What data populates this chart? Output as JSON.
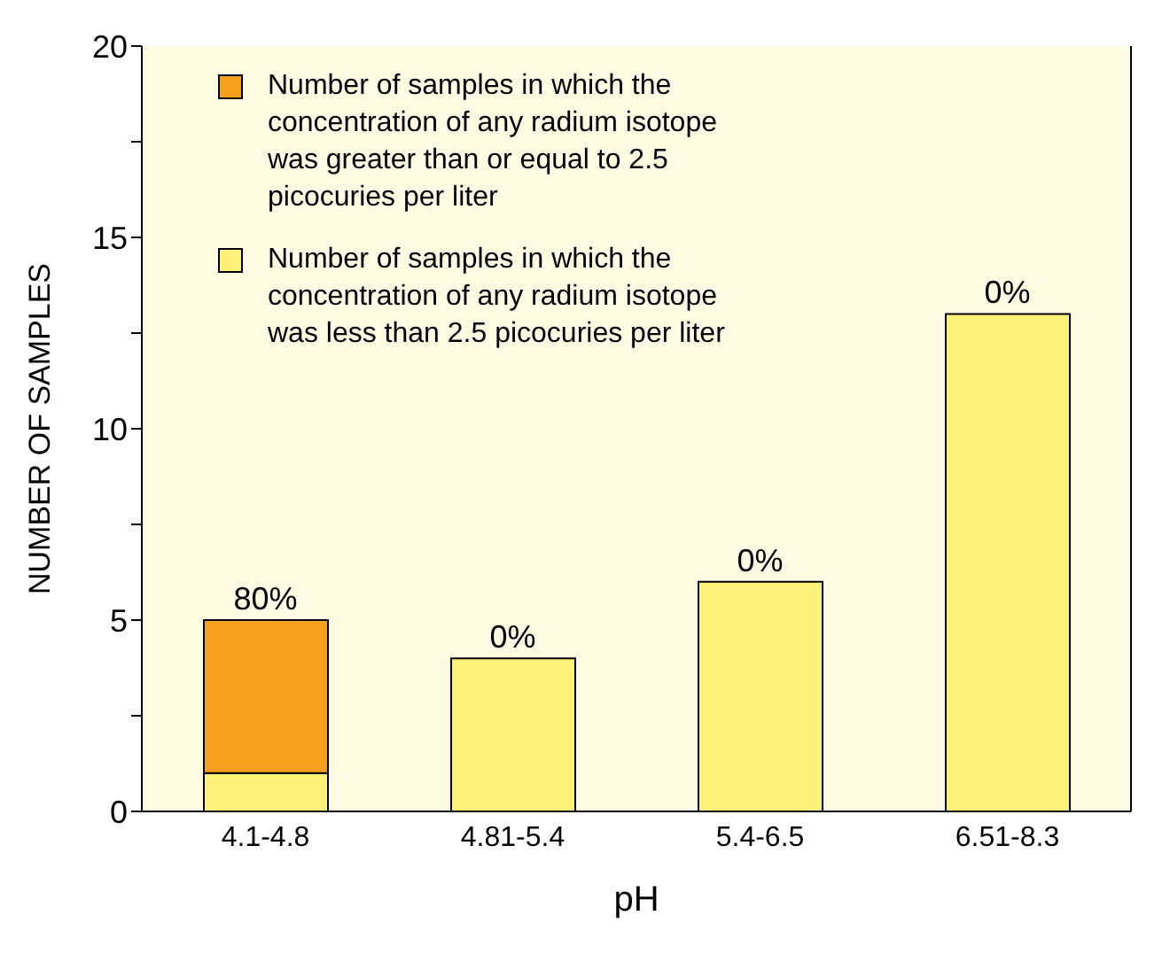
{
  "chart_data": {
    "type": "bar",
    "stacked": true,
    "xlabel": "pH",
    "ylabel": "NUMBER OF SAMPLES",
    "categories": [
      "4.1-4.8",
      "4.81-5.4",
      "5.4-6.5",
      "6.51-8.3"
    ],
    "series": [
      {
        "name": "Number of samples in which the concentration of any radium isotope was less than  2.5 picocuries per liter",
        "color": "#fff27a",
        "values": [
          1,
          4,
          6,
          13
        ]
      },
      {
        "name": "Number of samples in which the concentration of any radium isotope was greater than or equal to 2.5 picocuries per liter",
        "color": "#f5a01e",
        "values": [
          4,
          0,
          0,
          0
        ]
      }
    ],
    "ylim": [
      0,
      20
    ],
    "yticks": [
      0,
      {
        "value": 2.5,
        "label": null
      },
      5,
      {
        "value": 7.5,
        "label": null
      },
      10,
      {
        "value": 12.5,
        "label": null
      },
      15,
      {
        "value": 17.5,
        "label": null
      },
      20
    ],
    "annotations": [
      {
        "text": "80%",
        "x": "4.1-4.8",
        "y": 5
      },
      {
        "text": "0%",
        "x": "4.81-5.4",
        "y": 4
      },
      {
        "text": "0%",
        "x": "5.4-6.5",
        "y": 6
      },
      {
        "text": "0%",
        "x": "6.51-8.3",
        "y": 13
      }
    ],
    "legend": "top left",
    "grid": false
  }
}
